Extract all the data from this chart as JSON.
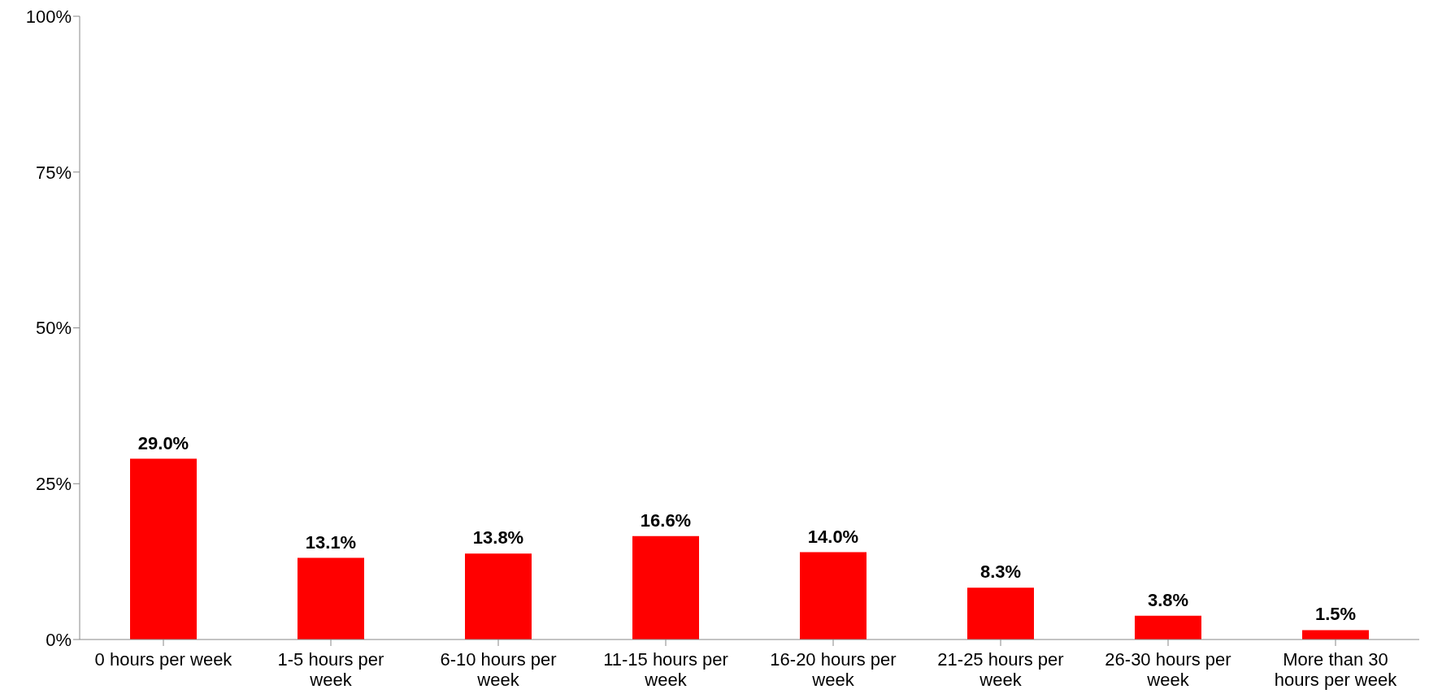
{
  "chart_data": {
    "type": "bar",
    "categories": [
      "0 hours per week",
      "1-5 hours per week",
      "6-10 hours per week",
      "11-15 hours per week",
      "16-20 hours per week",
      "21-25 hours per week",
      "26-30 hours per week",
      "More than 30 hours per week"
    ],
    "values": [
      29.0,
      13.1,
      13.8,
      16.6,
      14.0,
      8.3,
      3.8,
      1.5
    ],
    "value_labels": [
      "29.0%",
      "13.1%",
      "13.8%",
      "16.6%",
      "14.0%",
      "8.3%",
      "3.8%",
      "1.5%"
    ],
    "color": "#ff0000",
    "ylim": [
      0,
      100
    ],
    "yticks": [
      {
        "value": 0,
        "label": "0%"
      },
      {
        "value": 25,
        "label": "25%"
      },
      {
        "value": 50,
        "label": "50%"
      },
      {
        "value": 75,
        "label": "75%"
      },
      {
        "value": 100,
        "label": "100%"
      }
    ],
    "grid": false
  }
}
